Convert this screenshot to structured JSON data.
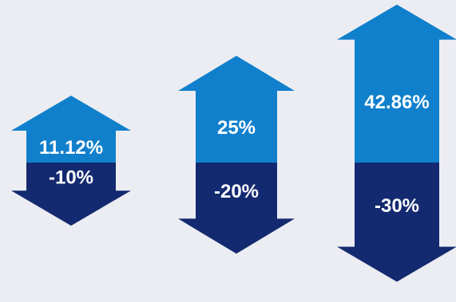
{
  "colors": {
    "background": "#ecedf2",
    "gain": "#1180cc",
    "loss": "#142a70",
    "label": "#ffffff"
  },
  "chart_data": {
    "type": "bar",
    "categories": [
      "",
      "",
      ""
    ],
    "series": [
      {
        "values": [
          11.12,
          25,
          42.86
        ],
        "labels": [
          "11.12%",
          "25%",
          "42.86%"
        ]
      },
      {
        "values": [
          -10,
          -20,
          -30
        ],
        "labels": [
          "-10%",
          "-20%",
          "-30%"
        ]
      }
    ],
    "title": "",
    "xlabel": "",
    "ylabel": "",
    "grid": false,
    "legend": "none"
  }
}
